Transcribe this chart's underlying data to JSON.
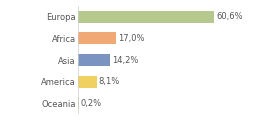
{
  "categories": [
    "Europa",
    "Africa",
    "Asia",
    "America",
    "Oceania"
  ],
  "values": [
    60.6,
    17.0,
    14.2,
    8.1,
    0.2
  ],
  "bar_colors": [
    "#b5c98e",
    "#f0a875",
    "#7b93c0",
    "#f0d060",
    "#c8d8a0"
  ],
  "labels": [
    "60,6%",
    "17,0%",
    "14,2%",
    "8,1%",
    "0,2%"
  ],
  "xlim": [
    0,
    75
  ],
  "background_color": "#ffffff",
  "label_fontsize": 6.0,
  "tick_fontsize": 6.0,
  "bar_height": 0.55,
  "label_color": "#555555",
  "tick_color": "#555555"
}
